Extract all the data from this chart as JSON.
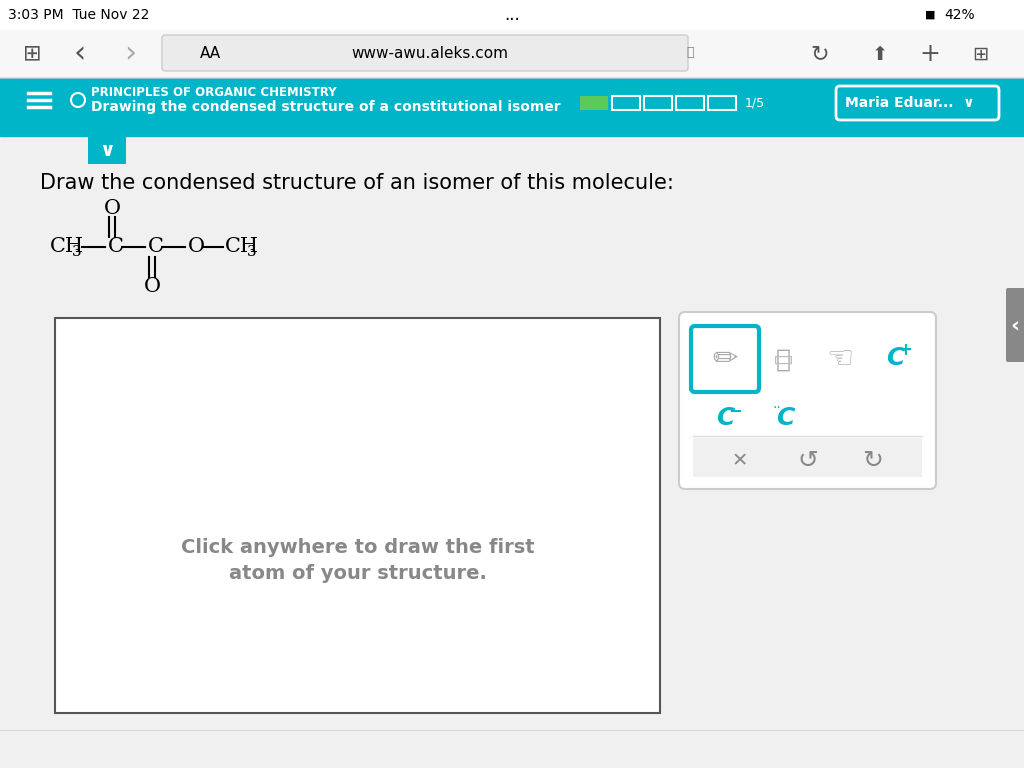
{
  "bg_color": "#f0f0f0",
  "header_color": "#00b5c8",
  "header_text1": "PRINCIPLES OF ORGANIC CHEMISTRY",
  "header_text2": "Drawing the condensed structure of a constitutional isomer",
  "header_progress": "1/5",
  "user_name": "Maria Eduar...",
  "status_bar_time": "3:03 PM  Tue Nov 22",
  "battery": "42%",
  "url": "www-awu.aleks.com",
  "question_text": "Draw the condensed structure of an isomer of this molecule:",
  "drawing_box_text1": "Click anywhere to draw the first",
  "drawing_box_text2": "atom of your structure.",
  "molecule_color": "#1a1a1a",
  "teal_color": "#00b5c8",
  "white": "#ffffff",
  "light_gray": "#e8e8e8",
  "gray": "#aaaaaa",
  "dark_gray": "#555555"
}
